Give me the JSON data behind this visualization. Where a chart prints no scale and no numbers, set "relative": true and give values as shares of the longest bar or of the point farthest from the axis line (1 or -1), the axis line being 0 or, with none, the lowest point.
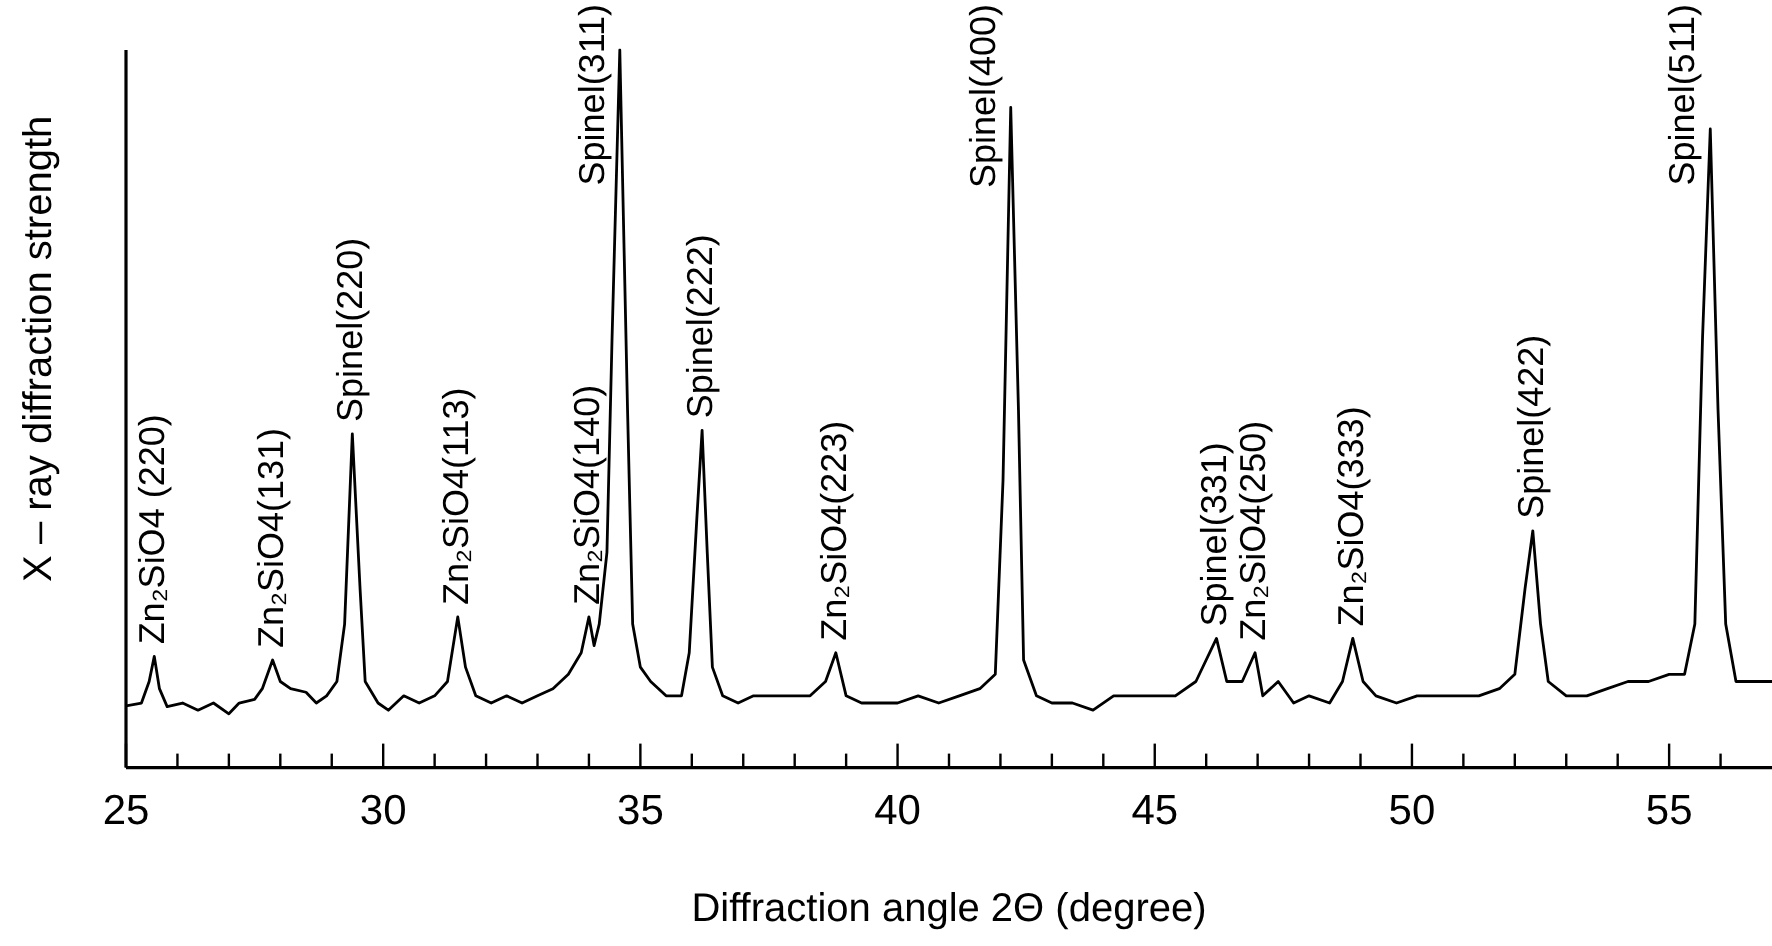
{
  "chart_data": {
    "type": "line",
    "relative": true,
    "xlabel": "Diffraction angle 2Θ (degree)",
    "ylabel": "X – ray diffraction strength",
    "marker": "none",
    "line_style": "solid",
    "xlim": [
      25,
      57
    ],
    "xticks": [
      25,
      {
        "value": 26,
        "label": null
      },
      {
        "value": 27,
        "label": null
      },
      {
        "value": 28,
        "label": null
      },
      {
        "value": 29,
        "label": null
      },
      30,
      {
        "value": 31,
        "label": null
      },
      {
        "value": 32,
        "label": null
      },
      {
        "value": 33,
        "label": null
      },
      {
        "value": 34,
        "label": null
      },
      35,
      {
        "value": 36,
        "label": null
      },
      {
        "value": 37,
        "label": null
      },
      {
        "value": 38,
        "label": null
      },
      {
        "value": 39,
        "label": null
      },
      40,
      {
        "value": 41,
        "label": null
      },
      {
        "value": 42,
        "label": null
      },
      {
        "value": 43,
        "label": null
      },
      {
        "value": 44,
        "label": null
      },
      45,
      {
        "value": 46,
        "label": null
      },
      {
        "value": 47,
        "label": null
      },
      {
        "value": 48,
        "label": null
      },
      {
        "value": 49,
        "label": null
      },
      50,
      {
        "value": 51,
        "label": null
      },
      {
        "value": 52,
        "label": null
      },
      {
        "value": 53,
        "label": null
      },
      {
        "value": 54,
        "label": null
      },
      55,
      {
        "value": 56,
        "label": null
      }
    ],
    "series": [
      {
        "color": "#000000",
        "x": [
          25.0,
          25.3,
          25.45,
          25.55,
          25.65,
          25.8,
          26.1,
          26.4,
          26.7,
          27.0,
          27.2,
          27.5,
          27.65,
          27.85,
          28.0,
          28.2,
          28.5,
          28.7,
          28.9,
          29.1,
          29.25,
          29.4,
          29.55,
          29.65,
          29.9,
          30.1,
          30.4,
          30.7,
          31.0,
          31.25,
          31.45,
          31.6,
          31.8,
          32.1,
          32.4,
          32.7,
          33.0,
          33.3,
          33.6,
          33.85,
          34.0,
          34.1,
          34.2,
          34.35,
          34.45,
          34.6,
          34.75,
          34.85,
          35.0,
          35.2,
          35.5,
          35.8,
          35.95,
          36.1,
          36.2,
          36.3,
          36.4,
          36.6,
          36.9,
          37.2,
          37.6,
          37.9,
          38.3,
          38.6,
          38.8,
          39.0,
          39.3,
          39.7,
          40.0,
          40.4,
          40.8,
          41.2,
          41.6,
          41.9,
          42.05,
          42.2,
          42.35,
          42.45,
          42.7,
          43.0,
          43.4,
          43.8,
          44.2,
          44.6,
          45.0,
          45.4,
          45.8,
          46.2,
          46.4,
          46.7,
          46.95,
          47.1,
          47.4,
          47.7,
          48.0,
          48.4,
          48.65,
          48.85,
          49.05,
          49.3,
          49.7,
          50.1,
          50.5,
          50.9,
          51.3,
          51.7,
          52.0,
          52.2,
          52.35,
          52.5,
          52.65,
          53.0,
          53.4,
          53.8,
          54.2,
          54.6,
          55.0,
          55.3,
          55.5,
          55.65,
          55.8,
          55.95,
          56.1,
          56.3,
          56.6,
          57.0
        ],
        "values": [
          0.086,
          0.09,
          0.12,
          0.155,
          0.11,
          0.085,
          0.09,
          0.08,
          0.09,
          0.075,
          0.09,
          0.095,
          0.11,
          0.15,
          0.12,
          0.11,
          0.105,
          0.09,
          0.1,
          0.12,
          0.2,
          0.465,
          0.25,
          0.12,
          0.09,
          0.08,
          0.1,
          0.09,
          0.1,
          0.12,
          0.21,
          0.14,
          0.1,
          0.09,
          0.1,
          0.09,
          0.1,
          0.11,
          0.13,
          0.16,
          0.21,
          0.17,
          0.2,
          0.3,
          0.6,
          1.0,
          0.5,
          0.2,
          0.14,
          0.12,
          0.1,
          0.1,
          0.16,
          0.35,
          0.47,
          0.3,
          0.14,
          0.1,
          0.09,
          0.1,
          0.1,
          0.1,
          0.1,
          0.12,
          0.16,
          0.1,
          0.09,
          0.09,
          0.09,
          0.1,
          0.09,
          0.1,
          0.11,
          0.13,
          0.4,
          0.92,
          0.5,
          0.15,
          0.1,
          0.09,
          0.09,
          0.08,
          0.1,
          0.1,
          0.1,
          0.1,
          0.12,
          0.18,
          0.12,
          0.12,
          0.16,
          0.1,
          0.12,
          0.09,
          0.1,
          0.09,
          0.12,
          0.18,
          0.12,
          0.1,
          0.09,
          0.1,
          0.1,
          0.1,
          0.1,
          0.11,
          0.13,
          0.25,
          0.33,
          0.2,
          0.12,
          0.1,
          0.1,
          0.11,
          0.12,
          0.12,
          0.13,
          0.13,
          0.2,
          0.6,
          0.89,
          0.5,
          0.2,
          0.12,
          0.12,
          0.12
        ]
      }
    ],
    "annotations": [
      {
        "text": "Zn₂SiO4 (220)",
        "x": 25.55,
        "y": 0.155
      },
      {
        "text": "Zn₂SiO4(131)",
        "x": 27.85,
        "y": 0.15
      },
      {
        "text": "Spinel(220)",
        "x": 29.4,
        "y": 0.465
      },
      {
        "text": "Zn₂SiO4(113)",
        "x": 31.45,
        "y": 0.21
      },
      {
        "text": "Zn₂SiO4(140)",
        "x": 34.0,
        "y": 0.21
      },
      {
        "text": "Spinel(311)",
        "x": 34.6,
        "y": 1.0
      },
      {
        "text": "Spinel(222)",
        "x": 36.2,
        "y": 0.47
      },
      {
        "text": "Zn₂SiO4(223)",
        "x": 38.8,
        "y": 0.16
      },
      {
        "text": "Spinel(400)",
        "x": 42.2,
        "y": 0.92
      },
      {
        "text": "Spinel(331)",
        "x": 46.2,
        "y": 0.18
      },
      {
        "text": "Zn₂SiO4(250)",
        "x": 46.95,
        "y": 0.16
      },
      {
        "text": "Zn₂SiO4(333)",
        "x": 48.85,
        "y": 0.18
      },
      {
        "text": "Spinel(422)",
        "x": 52.35,
        "y": 0.33
      },
      {
        "text": "Spinel(511)",
        "x": 55.8,
        "y": 0.89
      }
    ]
  }
}
